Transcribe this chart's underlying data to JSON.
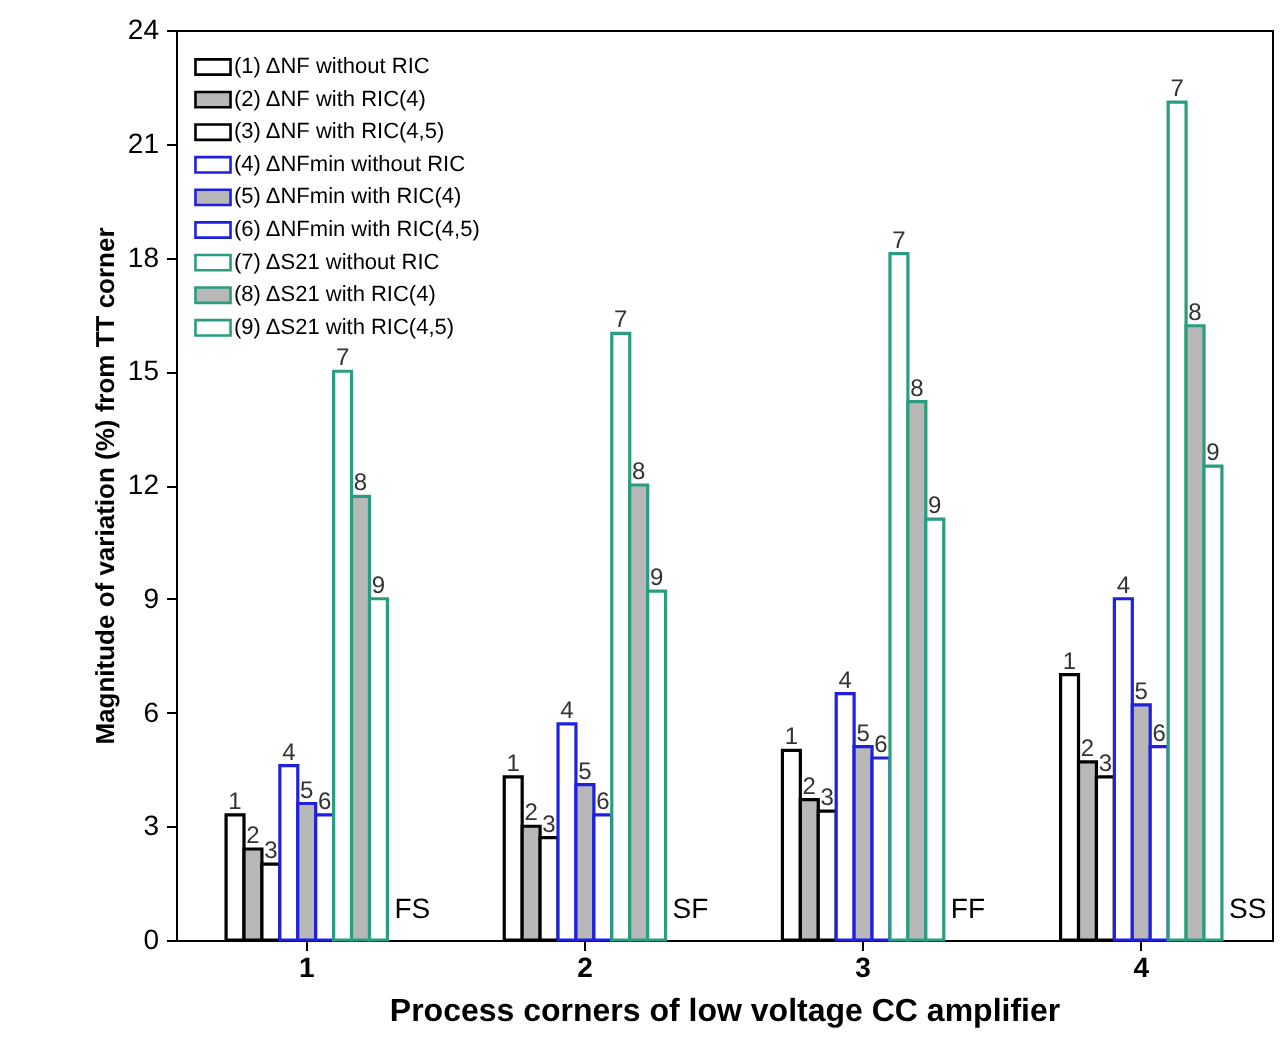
{
  "chart_data": {
    "type": "bar",
    "xlabel": "Process corners of low voltage CC amplifier",
    "ylabel": "Magnitude of variation (%) from TT corner",
    "categories": [
      "1",
      "2",
      "3",
      "4"
    ],
    "series": [
      {
        "name": "(1) ΔNF without RIC",
        "color": "#000000",
        "values": [
          3.3,
          4.3,
          5.0,
          7.0
        ]
      },
      {
        "name": "(2) ΔNF with RIC(4)",
        "color": "#000000",
        "values": [
          2.4,
          3.0,
          3.7,
          4.7
        ]
      },
      {
        "name": "(3) ΔNF with RIC(4,5)",
        "color": "#000000",
        "values": [
          2.0,
          2.7,
          3.4,
          4.3
        ]
      },
      {
        "name": "(4) ΔNFmin without RIC",
        "color": "#2020e0",
        "values": [
          4.6,
          5.7,
          6.5,
          9.0
        ]
      },
      {
        "name": "(5) ΔNFmin with RIC(4)",
        "color": "#2020e0",
        "values": [
          3.6,
          4.1,
          5.1,
          6.2
        ]
      },
      {
        "name": "(6) ΔNFmin with RIC(4,5)",
        "color": "#2020e0",
        "values": [
          3.3,
          3.3,
          4.8,
          5.1
        ]
      },
      {
        "name": "(7) ΔS21 without RIC",
        "color": "#2a9d80",
        "values": [
          15.0,
          16.0,
          18.1,
          22.1
        ]
      },
      {
        "name": "(8) ΔS21 with RIC(4)",
        "color": "#2a9d80",
        "values": [
          11.7,
          12.0,
          14.2,
          16.2
        ]
      },
      {
        "name": "(9) ΔS21 with RIC(4,5)",
        "color": "#2a9d80",
        "values": [
          9.0,
          9.2,
          11.1,
          12.5
        ]
      }
    ],
    "annotations": [
      "1",
      "1",
      "1",
      "1",
      "2",
      "2",
      "2",
      "2",
      "3",
      "3",
      "3",
      "3",
      "4",
      "4",
      "4",
      "4",
      "5",
      "5",
      "5",
      "5",
      "6",
      "6",
      "6",
      "6",
      "7",
      "7",
      "7",
      "7",
      "8",
      "8",
      "8",
      "8",
      "9",
      "9",
      "9",
      "9",
      "FS",
      "SF",
      "FF",
      "SS"
    ],
    "ylim": [
      0,
      24
    ],
    "yticks": [
      0,
      3,
      6,
      9,
      12,
      15,
      18,
      21,
      24
    ],
    "legend": "top left",
    "grid": false
  }
}
